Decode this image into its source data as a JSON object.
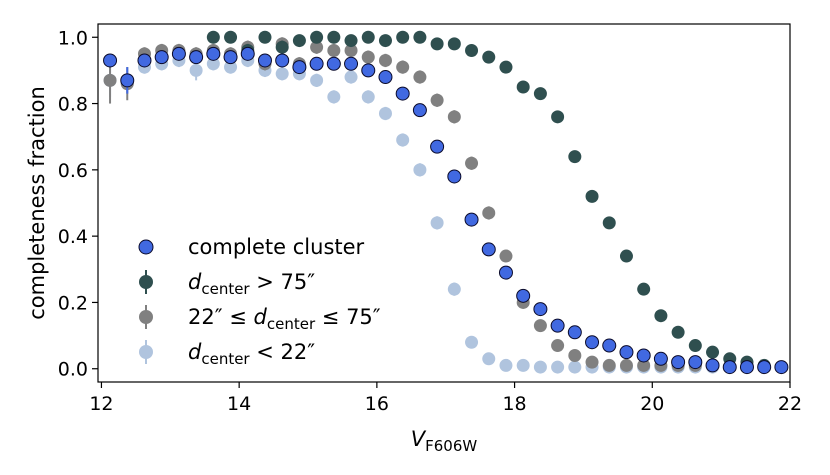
{
  "chart_data": {
    "type": "scatter",
    "xlabel": "V",
    "xlabel_sub": "F606W",
    "ylabel": "completeness fraction",
    "xlim": [
      11.95,
      22
    ],
    "ylim": [
      -0.04,
      1.04
    ],
    "xticks": [
      12,
      14,
      16,
      18,
      20,
      22
    ],
    "xtick_labels": [
      "12",
      "14",
      "16",
      "18",
      "20",
      "22"
    ],
    "yticks": [
      0.0,
      0.2,
      0.4,
      0.6,
      0.8,
      1.0
    ],
    "ytick_labels": [
      "0.0",
      "0.2",
      "0.4",
      "0.6",
      "0.8",
      "1.0"
    ],
    "legend_position": "lower-left",
    "series": [
      {
        "name": "light",
        "legend": {
          "italic": "d",
          "sub": "center",
          "rest": " < 22″"
        },
        "color": "#b0c4de",
        "edge": "none",
        "x": [
          12.125,
          12.375,
          12.625,
          12.875,
          13.125,
          13.375,
          13.625,
          13.875,
          14.125,
          14.375,
          14.625,
          14.875,
          15.125,
          15.375,
          15.625,
          15.875,
          16.125,
          16.375,
          16.625,
          16.875,
          17.125,
          17.375,
          17.625,
          17.875,
          18.125,
          18.375,
          18.625,
          18.875,
          19.125,
          19.375,
          19.625,
          19.875,
          20.125,
          20.375,
          20.625,
          20.875,
          21.125,
          21.375,
          21.625,
          21.875
        ],
        "y": [
          0.87,
          0.86,
          0.91,
          0.92,
          0.93,
          0.9,
          0.92,
          0.91,
          0.93,
          0.9,
          0.89,
          0.89,
          0.87,
          0.82,
          0.88,
          0.82,
          0.77,
          0.69,
          0.6,
          0.44,
          0.24,
          0.08,
          0.03,
          0.01,
          0.01,
          0.005,
          0.005,
          0.005,
          0.005,
          0.005,
          0.005,
          0.005,
          0.005,
          0.005,
          0.005,
          0.005,
          0.005,
          0.005,
          0.005,
          0.005
        ],
        "err": [
          0.05,
          0.03,
          0.02,
          0.02,
          0.02,
          0.03,
          0.02,
          0.02,
          0.02,
          0.02,
          0.02,
          0.02,
          0.02,
          0.02,
          0.02,
          0.02,
          0.02,
          0.02,
          0.02,
          0.02,
          0.02,
          0.01,
          0.01,
          0,
          0,
          0,
          0,
          0,
          0,
          0,
          0,
          0,
          0,
          0,
          0,
          0,
          0,
          0,
          0,
          0
        ]
      },
      {
        "name": "gray",
        "legend": {
          "pre": "22″ ≤ ",
          "italic": "d",
          "sub": "center",
          "rest": " ≤ 75″"
        },
        "color": "#808080",
        "edge": "none",
        "x": [
          12.125,
          12.375,
          12.625,
          12.875,
          13.125,
          13.375,
          13.625,
          13.875,
          14.125,
          14.375,
          14.625,
          14.875,
          15.125,
          15.375,
          15.625,
          15.875,
          16.125,
          16.375,
          16.625,
          16.875,
          17.125,
          17.375,
          17.625,
          17.875,
          18.125,
          18.375,
          18.625,
          18.875,
          19.125,
          19.375,
          19.625,
          19.875,
          20.125,
          20.375,
          20.625,
          20.875,
          21.125,
          21.375,
          21.625,
          21.875
        ],
        "y": [
          0.87,
          0.86,
          0.95,
          0.96,
          0.96,
          0.95,
          0.96,
          0.95,
          0.97,
          0.92,
          0.98,
          0.92,
          0.97,
          0.96,
          0.96,
          0.94,
          0.93,
          0.91,
          0.88,
          0.81,
          0.76,
          0.62,
          0.47,
          0.34,
          0.2,
          0.13,
          0.07,
          0.04,
          0.02,
          0.01,
          0.01,
          0.01,
          0.01,
          0.01,
          0.01,
          0.01,
          0.005,
          0.005,
          0.005,
          0.005
        ],
        "err": [
          0.07,
          0.05,
          0.02,
          0.02,
          0.02,
          0.02,
          0.02,
          0.02,
          0.02,
          0.02,
          0.02,
          0.02,
          0.02,
          0.02,
          0.02,
          0.02,
          0.02,
          0.02,
          0.02,
          0.02,
          0.02,
          0.02,
          0.02,
          0.01,
          0.01,
          0.01,
          0.01,
          0,
          0,
          0,
          0,
          0,
          0,
          0,
          0,
          0,
          0,
          0,
          0,
          0
        ]
      },
      {
        "name": "dark",
        "legend": {
          "italic": "d",
          "sub": "center",
          "rest": " > 75″"
        },
        "color": "#2f4f4f",
        "edge": "none",
        "x": [
          13.625,
          13.875,
          14.125,
          14.375,
          14.625,
          14.875,
          15.125,
          15.375,
          15.625,
          15.875,
          16.125,
          16.375,
          16.625,
          16.875,
          17.125,
          17.375,
          17.625,
          17.875,
          18.125,
          18.375,
          18.625,
          18.875,
          19.125,
          19.375,
          19.625,
          19.875,
          20.125,
          20.375,
          20.625,
          20.875,
          21.125,
          21.375,
          21.625,
          21.875
        ],
        "y": [
          1.0,
          1.0,
          0.96,
          1.0,
          0.97,
          0.99,
          1.0,
          1.0,
          0.99,
          1.0,
          0.99,
          1.0,
          1.0,
          0.98,
          0.98,
          0.96,
          0.94,
          0.91,
          0.85,
          0.83,
          0.76,
          0.64,
          0.52,
          0.44,
          0.34,
          0.24,
          0.16,
          0.11,
          0.07,
          0.05,
          0.03,
          0.02,
          0.01,
          0.005
        ],
        "err": [
          0,
          0,
          0.02,
          0,
          0.02,
          0.01,
          0,
          0,
          0.01,
          0,
          0.01,
          0,
          0,
          0.01,
          0.01,
          0.01,
          0.01,
          0.01,
          0.01,
          0.01,
          0.01,
          0.01,
          0.01,
          0.01,
          0.01,
          0.01,
          0.01,
          0.01,
          0.01,
          0,
          0,
          0,
          0,
          0
        ]
      },
      {
        "name": "complete",
        "legend": {
          "text": "complete cluster"
        },
        "color": "#4169e1",
        "edge": "#0a0a2a",
        "x": [
          12.125,
          12.375,
          12.625,
          12.875,
          13.125,
          13.375,
          13.625,
          13.875,
          14.125,
          14.375,
          14.625,
          14.875,
          15.125,
          15.375,
          15.625,
          15.875,
          16.125,
          16.375,
          16.625,
          16.875,
          17.125,
          17.375,
          17.625,
          17.875,
          18.125,
          18.375,
          18.625,
          18.875,
          19.125,
          19.375,
          19.625,
          19.875,
          20.125,
          20.375,
          20.625,
          20.875,
          21.125,
          21.375,
          21.625,
          21.875
        ],
        "y": [
          0.93,
          0.87,
          0.93,
          0.94,
          0.95,
          0.94,
          0.95,
          0.94,
          0.95,
          0.93,
          0.93,
          0.91,
          0.92,
          0.92,
          0.92,
          0.9,
          0.88,
          0.83,
          0.78,
          0.67,
          0.58,
          0.45,
          0.36,
          0.29,
          0.22,
          0.18,
          0.13,
          0.11,
          0.08,
          0.07,
          0.05,
          0.04,
          0.03,
          0.02,
          0.02,
          0.01,
          0.005,
          0.005,
          0.005,
          0.005
        ],
        "err": [
          0.02,
          0.04,
          0.02,
          0.02,
          0.02,
          0.02,
          0.02,
          0.02,
          0.02,
          0.02,
          0.02,
          0.02,
          0.02,
          0.02,
          0.02,
          0.02,
          0.02,
          0.02,
          0.02,
          0.02,
          0.02,
          0.01,
          0.01,
          0.01,
          0.01,
          0.01,
          0.01,
          0.01,
          0,
          0,
          0,
          0,
          0,
          0,
          0,
          0,
          0,
          0,
          0,
          0
        ]
      }
    ],
    "legend_order": [
      "complete",
      "dark",
      "gray",
      "light"
    ]
  }
}
